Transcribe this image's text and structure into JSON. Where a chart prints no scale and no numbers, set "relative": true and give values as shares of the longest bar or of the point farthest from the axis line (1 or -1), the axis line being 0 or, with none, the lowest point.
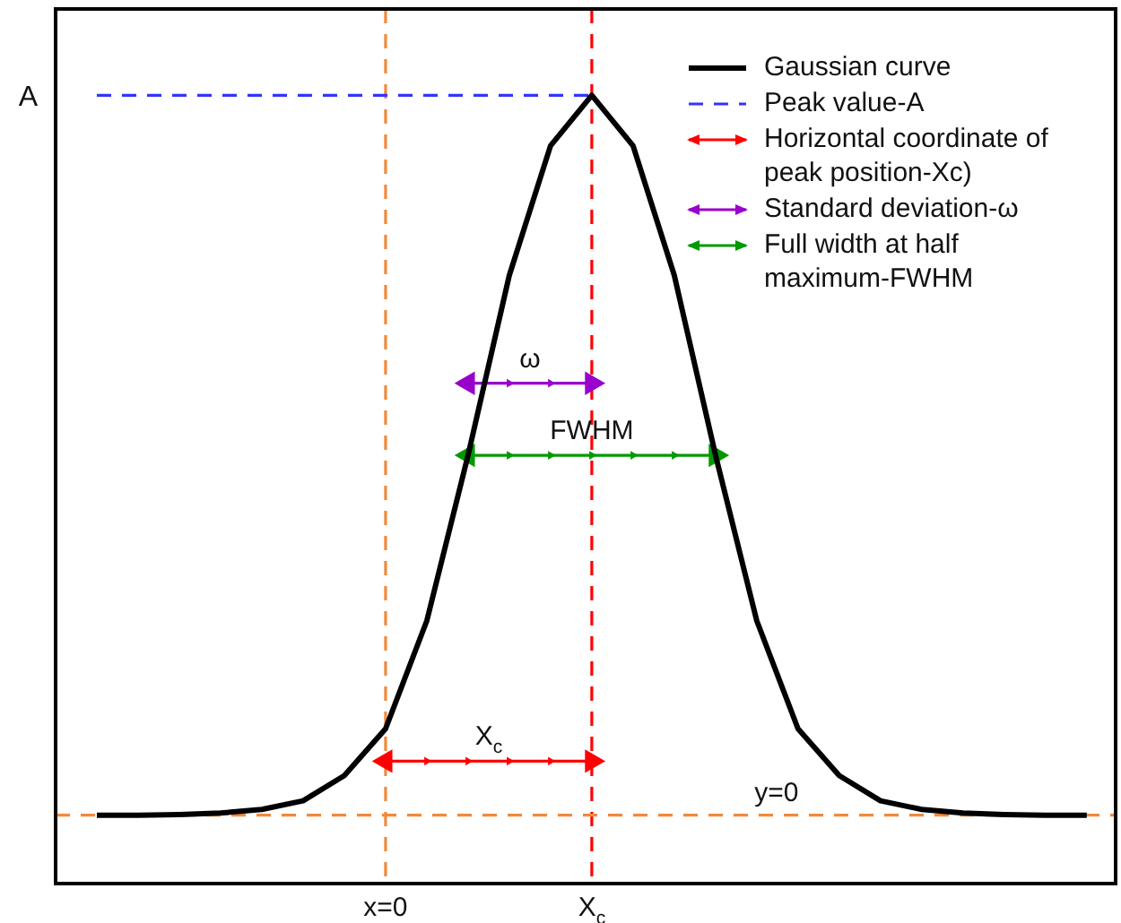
{
  "chart_data": {
    "type": "line",
    "relative": true,
    "legend": "top right",
    "categories": [
      null,
      null,
      null,
      null,
      null,
      null,
      null,
      "x=0",
      null,
      null,
      null,
      null,
      "X$_{c}$",
      null,
      null,
      null,
      null,
      null,
      null,
      null,
      null,
      null,
      null,
      null,
      null
    ],
    "series": [
      {
        "name": "Gaussian curve",
        "color": "#000000",
        "line_style": "solid",
        "marker": "none",
        "values": [
          0,
          0,
          0.001,
          0.003,
          0.008,
          0.02,
          0.055,
          0.12,
          0.27,
          0.5,
          0.75,
          0.93,
          1,
          0.93,
          0.75,
          0.5,
          0.27,
          0.12,
          0.055,
          0.02,
          0.008,
          0.003,
          0.001,
          0,
          0
        ]
      },
      {
        "name": "Peak value-A",
        "color": "#3333ff",
        "line_style": "dashed",
        "marker": "none",
        "values": [
          1,
          1,
          1,
          1,
          1,
          1,
          1,
          1,
          1,
          1,
          1,
          1,
          1,
          null,
          null,
          null,
          null,
          null,
          null,
          null,
          null,
          null,
          null,
          null,
          null
        ]
      },
      {
        "name": "Horizontal coordinate of peak position-Xc)",
        "color": "#ff0000",
        "line_style": "solid",
        "marker": "triangle",
        "values": [
          null,
          null,
          null,
          null,
          null,
          null,
          null,
          0.075,
          0.075,
          0.075,
          0.075,
          0.075,
          0.075,
          null,
          null,
          null,
          null,
          null,
          null,
          null,
          null,
          null,
          null,
          null,
          null
        ]
      },
      {
        "name": "Standard deviation-ω",
        "color": "#9900cc",
        "line_style": "solid",
        "marker": "triangle",
        "values": [
          null,
          null,
          null,
          null,
          null,
          null,
          null,
          null,
          null,
          0.6,
          0.6,
          0.6,
          0.6,
          null,
          null,
          null,
          null,
          null,
          null,
          null,
          null,
          null,
          null,
          null,
          null
        ]
      },
      {
        "name": "Full width at half maximum-FWHM",
        "color": "#009900",
        "line_style": "solid",
        "marker": "triangle",
        "values": [
          null,
          null,
          null,
          null,
          null,
          null,
          null,
          null,
          null,
          0.5,
          0.5,
          0.5,
          0.5,
          0.5,
          0.5,
          0.5,
          null,
          null,
          null,
          null,
          null,
          null,
          null,
          null,
          null
        ]
      }
    ],
    "ref_lines": [
      {
        "axis": "x",
        "value": "x=0",
        "color": "#f08a3c",
        "line_style": "dashed"
      },
      {
        "axis": "x",
        "value": "X$_{c}$",
        "color": "#ff0000",
        "line_style": "dashed"
      },
      {
        "axis": "y",
        "value": 0,
        "color": "#f08a3c",
        "line_style": "dashed",
        "label": "y=0"
      }
    ],
    "annotations": [
      "A",
      {
        "text": "X$_{c}$",
        "y": 0.075
      },
      {
        "text": "ω",
        "y": 0.6
      },
      {
        "text": "FWHM",
        "y": 0.5
      }
    ]
  }
}
